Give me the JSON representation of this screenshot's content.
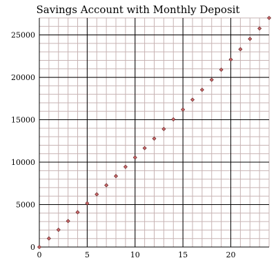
{
  "chart_data": {
    "type": "scatter",
    "title": "Savings Account with Monthly Deposit",
    "xlabel": "",
    "ylabel": "",
    "xlim": [
      0,
      24
    ],
    "ylim": [
      0,
      27000
    ],
    "x_ticks": [
      0,
      5,
      10,
      15,
      20
    ],
    "y_ticks": [
      0,
      5000,
      10000,
      15000,
      20000,
      25000
    ],
    "x_tick_labels": [
      "0",
      "5",
      "10",
      "15",
      "20"
    ],
    "y_tick_labels": [
      "0",
      "5000",
      "10000",
      "15000",
      "20000",
      "25000"
    ],
    "grid": true,
    "minor_grid": true,
    "minor_x_step": 1,
    "minor_y_step": 1000,
    "colors": {
      "marker_fill": "#c8686a",
      "marker_stroke": "#5a1a1a",
      "major_grid": "#000000",
      "minor_grid": "#c7b3b3"
    },
    "series": [
      {
        "x": [
          0,
          1,
          2,
          3,
          4,
          5,
          6,
          7,
          8,
          9,
          10,
          11,
          12,
          13,
          14,
          15,
          16,
          17,
          18,
          19,
          20,
          21,
          22,
          23,
          24
        ],
        "values": [
          0,
          1010,
          2030,
          3060,
          4100,
          5150,
          6210,
          7280,
          8360,
          9450,
          10550,
          11660,
          12780,
          13910,
          15050,
          16200,
          17360,
          18530,
          19710,
          20900,
          22100,
          23310,
          24530,
          25760,
          27000
        ]
      }
    ]
  }
}
